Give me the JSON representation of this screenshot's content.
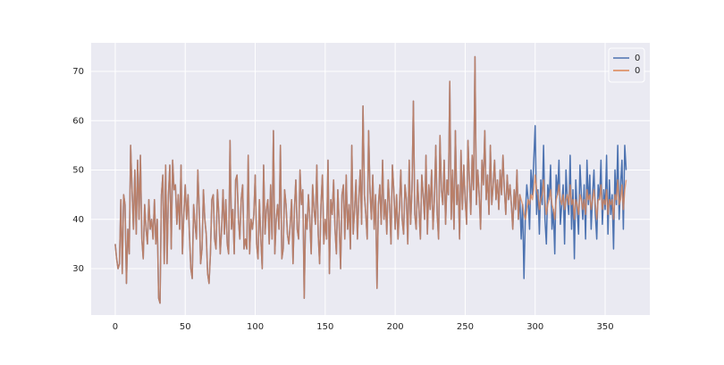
{
  "chart_data": {
    "type": "line",
    "x": [
      0,
      1,
      2,
      3,
      4,
      5,
      6,
      7,
      8,
      9,
      10,
      11,
      12,
      13,
      14,
      15,
      16,
      17,
      18,
      19,
      20,
      21,
      22,
      23,
      24,
      25,
      26,
      27,
      28,
      29,
      30,
      31,
      32,
      33,
      34,
      35,
      36,
      37,
      38,
      39,
      40,
      41,
      42,
      43,
      44,
      45,
      46,
      47,
      48,
      49,
      50,
      51,
      52,
      53,
      54,
      55,
      56,
      57,
      58,
      59,
      60,
      61,
      62,
      63,
      64,
      65,
      66,
      67,
      68,
      69,
      70,
      71,
      72,
      73,
      74,
      75,
      76,
      77,
      78,
      79,
      80,
      81,
      82,
      83,
      84,
      85,
      86,
      87,
      88,
      89,
      90,
      91,
      92,
      93,
      94,
      95,
      96,
      97,
      98,
      99,
      100,
      101,
      102,
      103,
      104,
      105,
      106,
      107,
      108,
      109,
      110,
      111,
      112,
      113,
      114,
      115,
      116,
      117,
      118,
      119,
      120,
      121,
      122,
      123,
      124,
      125,
      126,
      127,
      128,
      129,
      130,
      131,
      132,
      133,
      134,
      135,
      136,
      137,
      138,
      139,
      140,
      141,
      142,
      143,
      144,
      145,
      146,
      147,
      148,
      149,
      150,
      151,
      152,
      153,
      154,
      155,
      156,
      157,
      158,
      159,
      160,
      161,
      162,
      163,
      164,
      165,
      166,
      167,
      168,
      169,
      170,
      171,
      172,
      173,
      174,
      175,
      176,
      177,
      178,
      179,
      180,
      181,
      182,
      183,
      184,
      185,
      186,
      187,
      188,
      189,
      190,
      191,
      192,
      193,
      194,
      195,
      196,
      197,
      198,
      199,
      200,
      201,
      202,
      203,
      204,
      205,
      206,
      207,
      208,
      209,
      210,
      211,
      212,
      213,
      214,
      215,
      216,
      217,
      218,
      219,
      220,
      221,
      222,
      223,
      224,
      225,
      226,
      227,
      228,
      229,
      230,
      231,
      232,
      233,
      234,
      235,
      236,
      237,
      238,
      239,
      240,
      241,
      242,
      243,
      244,
      245,
      246,
      247,
      248,
      249,
      250,
      251,
      252,
      253,
      254,
      255,
      256,
      257,
      258,
      259,
      260,
      261,
      262,
      263,
      264,
      265,
      266,
      267,
      268,
      269,
      270,
      271,
      272,
      273,
      274,
      275,
      276,
      277,
      278,
      279,
      280,
      281,
      282,
      283,
      284,
      285,
      286,
      287,
      288,
      289,
      290,
      291,
      292,
      293,
      294,
      295,
      296,
      297,
      298,
      299,
      300,
      301,
      302,
      303,
      304,
      305,
      306,
      307,
      308,
      309,
      310,
      311,
      312,
      313,
      314,
      315,
      316,
      317,
      318,
      319,
      320,
      321,
      322,
      323,
      324,
      325,
      326,
      327,
      328,
      329,
      330,
      331,
      332,
      333,
      334,
      335,
      336,
      337,
      338,
      339,
      340,
      341,
      342,
      343,
      344,
      345,
      346,
      347,
      348,
      349,
      350,
      351,
      352,
      353,
      354,
      355,
      356,
      357,
      358,
      359,
      360,
      361,
      362,
      363,
      364,
      365
    ],
    "series": [
      {
        "name": "0",
        "color": "#4c72b0",
        "values": [
          35,
          32,
          30,
          31,
          44,
          29,
          45,
          43,
          27,
          38,
          33,
          55,
          46,
          38,
          50,
          37,
          52,
          40,
          53,
          36,
          32,
          43,
          38,
          35,
          44,
          38,
          40,
          36,
          44,
          35,
          40,
          24,
          23,
          45,
          49,
          31,
          51,
          31,
          45,
          51,
          34,
          52,
          46,
          47,
          39,
          45,
          38,
          51,
          33,
          41,
          47,
          40,
          45,
          37,
          30,
          28,
          43,
          39,
          36,
          50,
          42,
          31,
          34,
          46,
          40,
          37,
          29,
          27,
          33,
          44,
          45,
          36,
          34,
          46,
          41,
          33,
          38,
          46,
          37,
          44,
          35,
          33,
          56,
          38,
          42,
          33,
          48,
          49,
          40,
          36,
          44,
          47,
          34,
          36,
          34,
          53,
          33,
          40,
          38,
          41,
          49,
          35,
          32,
          44,
          36,
          30,
          51,
          37,
          42,
          44,
          35,
          47,
          36,
          58,
          33,
          40,
          43,
          38,
          55,
          32,
          34,
          46,
          43,
          37,
          35,
          39,
          44,
          31,
          42,
          48,
          38,
          36,
          50,
          43,
          46,
          24,
          41,
          38,
          45,
          40,
          33,
          47,
          42,
          39,
          51,
          37,
          31,
          43,
          49,
          35,
          40,
          36,
          52,
          29,
          44,
          41,
          48,
          38,
          33,
          46,
          39,
          30,
          45,
          47,
          36,
          49,
          38,
          43,
          34,
          55,
          37,
          42,
          48,
          36,
          44,
          50,
          39,
          63,
          45,
          41,
          36,
          58,
          46,
          40,
          49,
          38,
          45,
          26,
          43,
          47,
          39,
          52,
          40,
          44,
          37,
          48,
          43,
          35,
          51,
          46,
          38,
          45,
          36,
          42,
          50,
          40,
          37,
          47,
          44,
          35,
          52,
          39,
          46,
          64,
          41,
          38,
          48,
          42,
          36,
          49,
          45,
          40,
          53,
          37,
          47,
          42,
          50,
          38,
          44,
          55,
          41,
          36,
          57,
          46,
          43,
          52,
          39,
          48,
          45,
          68,
          40,
          50,
          38,
          58,
          43,
          47,
          36,
          54,
          42,
          51,
          44,
          39,
          56,
          48,
          41,
          53,
          46,
          73,
          43,
          50,
          45,
          38,
          52,
          47,
          58,
          44,
          49,
          41,
          55,
          43,
          47,
          52,
          44,
          48,
          42,
          50,
          45,
          53,
          46,
          41,
          49,
          44,
          47,
          43,
          38,
          46,
          42,
          50,
          40,
          45,
          36,
          43,
          28,
          41,
          47,
          44,
          38,
          50,
          45,
          52,
          59,
          41,
          46,
          37,
          48,
          43,
          55,
          40,
          35,
          47,
          44,
          51,
          38,
          42,
          33,
          49,
          45,
          52,
          39,
          43,
          47,
          35,
          50,
          44,
          41,
          53,
          38,
          46,
          32,
          48,
          42,
          37,
          51,
          45,
          40,
          47,
          36,
          52,
          43,
          49,
          38,
          45,
          50,
          41,
          36,
          47,
          44,
          52,
          39,
          46,
          42,
          53,
          37,
          48,
          41,
          45,
          34,
          50,
          43,
          55,
          40,
          47,
          52,
          38,
          55,
          50
        ]
      },
      {
        "name": "0",
        "color": "#dd8452",
        "values": [
          35,
          32,
          30,
          31,
          44,
          29,
          45,
          43,
          27,
          38,
          33,
          55,
          46,
          38,
          50,
          37,
          52,
          40,
          53,
          36,
          32,
          43,
          38,
          35,
          44,
          38,
          40,
          36,
          44,
          35,
          40,
          24,
          23,
          45,
          49,
          31,
          51,
          31,
          45,
          51,
          34,
          52,
          46,
          47,
          39,
          45,
          38,
          51,
          33,
          41,
          47,
          40,
          45,
          37,
          30,
          28,
          43,
          39,
          36,
          50,
          42,
          31,
          34,
          46,
          40,
          37,
          29,
          27,
          33,
          44,
          45,
          36,
          34,
          46,
          41,
          33,
          38,
          46,
          37,
          44,
          35,
          33,
          56,
          38,
          42,
          33,
          48,
          49,
          40,
          36,
          44,
          47,
          34,
          36,
          34,
          53,
          33,
          40,
          38,
          41,
          49,
          35,
          32,
          44,
          36,
          30,
          51,
          37,
          42,
          44,
          35,
          47,
          36,
          58,
          33,
          40,
          43,
          38,
          55,
          32,
          34,
          46,
          43,
          37,
          35,
          39,
          44,
          31,
          42,
          48,
          38,
          36,
          50,
          43,
          46,
          24,
          41,
          38,
          45,
          40,
          33,
          47,
          42,
          39,
          51,
          37,
          31,
          43,
          49,
          35,
          40,
          36,
          52,
          29,
          44,
          41,
          48,
          38,
          33,
          46,
          39,
          30,
          45,
          47,
          36,
          49,
          38,
          43,
          34,
          55,
          37,
          42,
          48,
          36,
          44,
          50,
          39,
          63,
          45,
          41,
          36,
          58,
          46,
          40,
          49,
          38,
          45,
          26,
          43,
          47,
          39,
          52,
          40,
          44,
          37,
          48,
          43,
          35,
          51,
          46,
          38,
          45,
          36,
          42,
          50,
          40,
          37,
          47,
          44,
          35,
          52,
          39,
          46,
          64,
          41,
          38,
          48,
          42,
          36,
          49,
          45,
          40,
          53,
          37,
          47,
          42,
          50,
          38,
          44,
          55,
          41,
          36,
          57,
          46,
          43,
          52,
          39,
          48,
          45,
          68,
          40,
          50,
          38,
          58,
          43,
          47,
          36,
          54,
          42,
          51,
          44,
          39,
          56,
          48,
          41,
          53,
          46,
          73,
          43,
          50,
          45,
          38,
          52,
          47,
          58,
          44,
          49,
          41,
          55,
          43,
          47,
          52,
          44,
          48,
          42,
          50,
          45,
          53,
          46,
          41,
          49,
          44,
          47,
          43,
          38,
          46,
          42,
          50,
          40,
          45,
          44,
          43,
          41,
          40,
          42,
          44,
          43,
          45,
          44,
          46,
          49,
          46,
          45,
          42,
          44,
          45,
          48,
          44,
          41,
          43,
          44,
          46,
          43,
          42,
          40,
          44,
          45,
          47,
          44,
          43,
          45,
          42,
          44,
          45,
          43,
          47,
          43,
          44,
          40,
          44,
          43,
          41,
          45,
          44,
          42,
          44,
          41,
          46,
          44,
          45,
          42,
          44,
          46,
          43,
          40,
          44,
          44,
          47,
          42,
          44,
          43,
          46,
          41,
          44,
          43,
          44,
          40,
          45,
          44,
          48,
          43,
          44,
          47,
          42,
          46,
          48
        ]
      }
    ],
    "xlim": [
      -17.2,
      381.9
    ],
    "ylim": [
      20.6,
      75.8
    ],
    "xticks": [
      0,
      50,
      100,
      150,
      200,
      250,
      300,
      350
    ],
    "yticks": [
      30,
      40,
      50,
      60,
      70
    ],
    "grid": true,
    "legend": "upper right"
  }
}
